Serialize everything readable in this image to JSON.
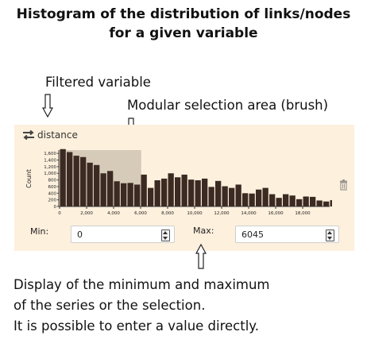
{
  "title": {
    "line1": "Histogram of the distribution of links/nodes",
    "line2": "for a given variable"
  },
  "annotations": {
    "filtered_variable": "Filtered variable",
    "brush": "Modular selection area (brush)",
    "bottom_line1": "Display of the minimum and maximum",
    "bottom_line2": "of the series or the selection.",
    "bottom_line3": "It is possible to enter a value directly."
  },
  "panel": {
    "variable_name": "distance",
    "swap_icon": "swap-arrows-icon",
    "delete_icon": "trash-icon",
    "min_label": "Min:",
    "min_value": "0",
    "max_label": "Max:",
    "max_value": "6045"
  },
  "colors": {
    "panel_bg": "#fdf0dd",
    "bar": "#3b2a22",
    "brush": "#cfc3b3"
  },
  "chart_data": {
    "type": "bar",
    "ylabel": "Count",
    "xlabel": "",
    "x_ticks": [
      "0",
      "2,000",
      "4,000",
      "6,000",
      "8,000",
      "10,000",
      "12,000",
      "14,000",
      "16,000",
      "18,000"
    ],
    "y_ticks": [
      "0",
      "200",
      "400",
      "600",
      "800",
      "1,000",
      "1,200",
      "1,400",
      "1,600"
    ],
    "xlim": [
      0,
      20000
    ],
    "ylim": [
      0,
      1700
    ],
    "bin_width": 500,
    "values": [
      1730,
      1640,
      1530,
      1490,
      1320,
      1250,
      1000,
      1070,
      760,
      700,
      710,
      660,
      960,
      560,
      790,
      840,
      1000,
      880,
      960,
      810,
      790,
      840,
      590,
      770,
      610,
      560,
      660,
      400,
      390,
      510,
      560,
      370,
      260,
      370,
      330,
      220,
      300,
      290,
      180,
      150,
      190,
      170,
      140,
      120,
      90,
      110,
      70,
      60,
      50,
      40
    ],
    "selection": [
      0,
      6045
    ]
  }
}
